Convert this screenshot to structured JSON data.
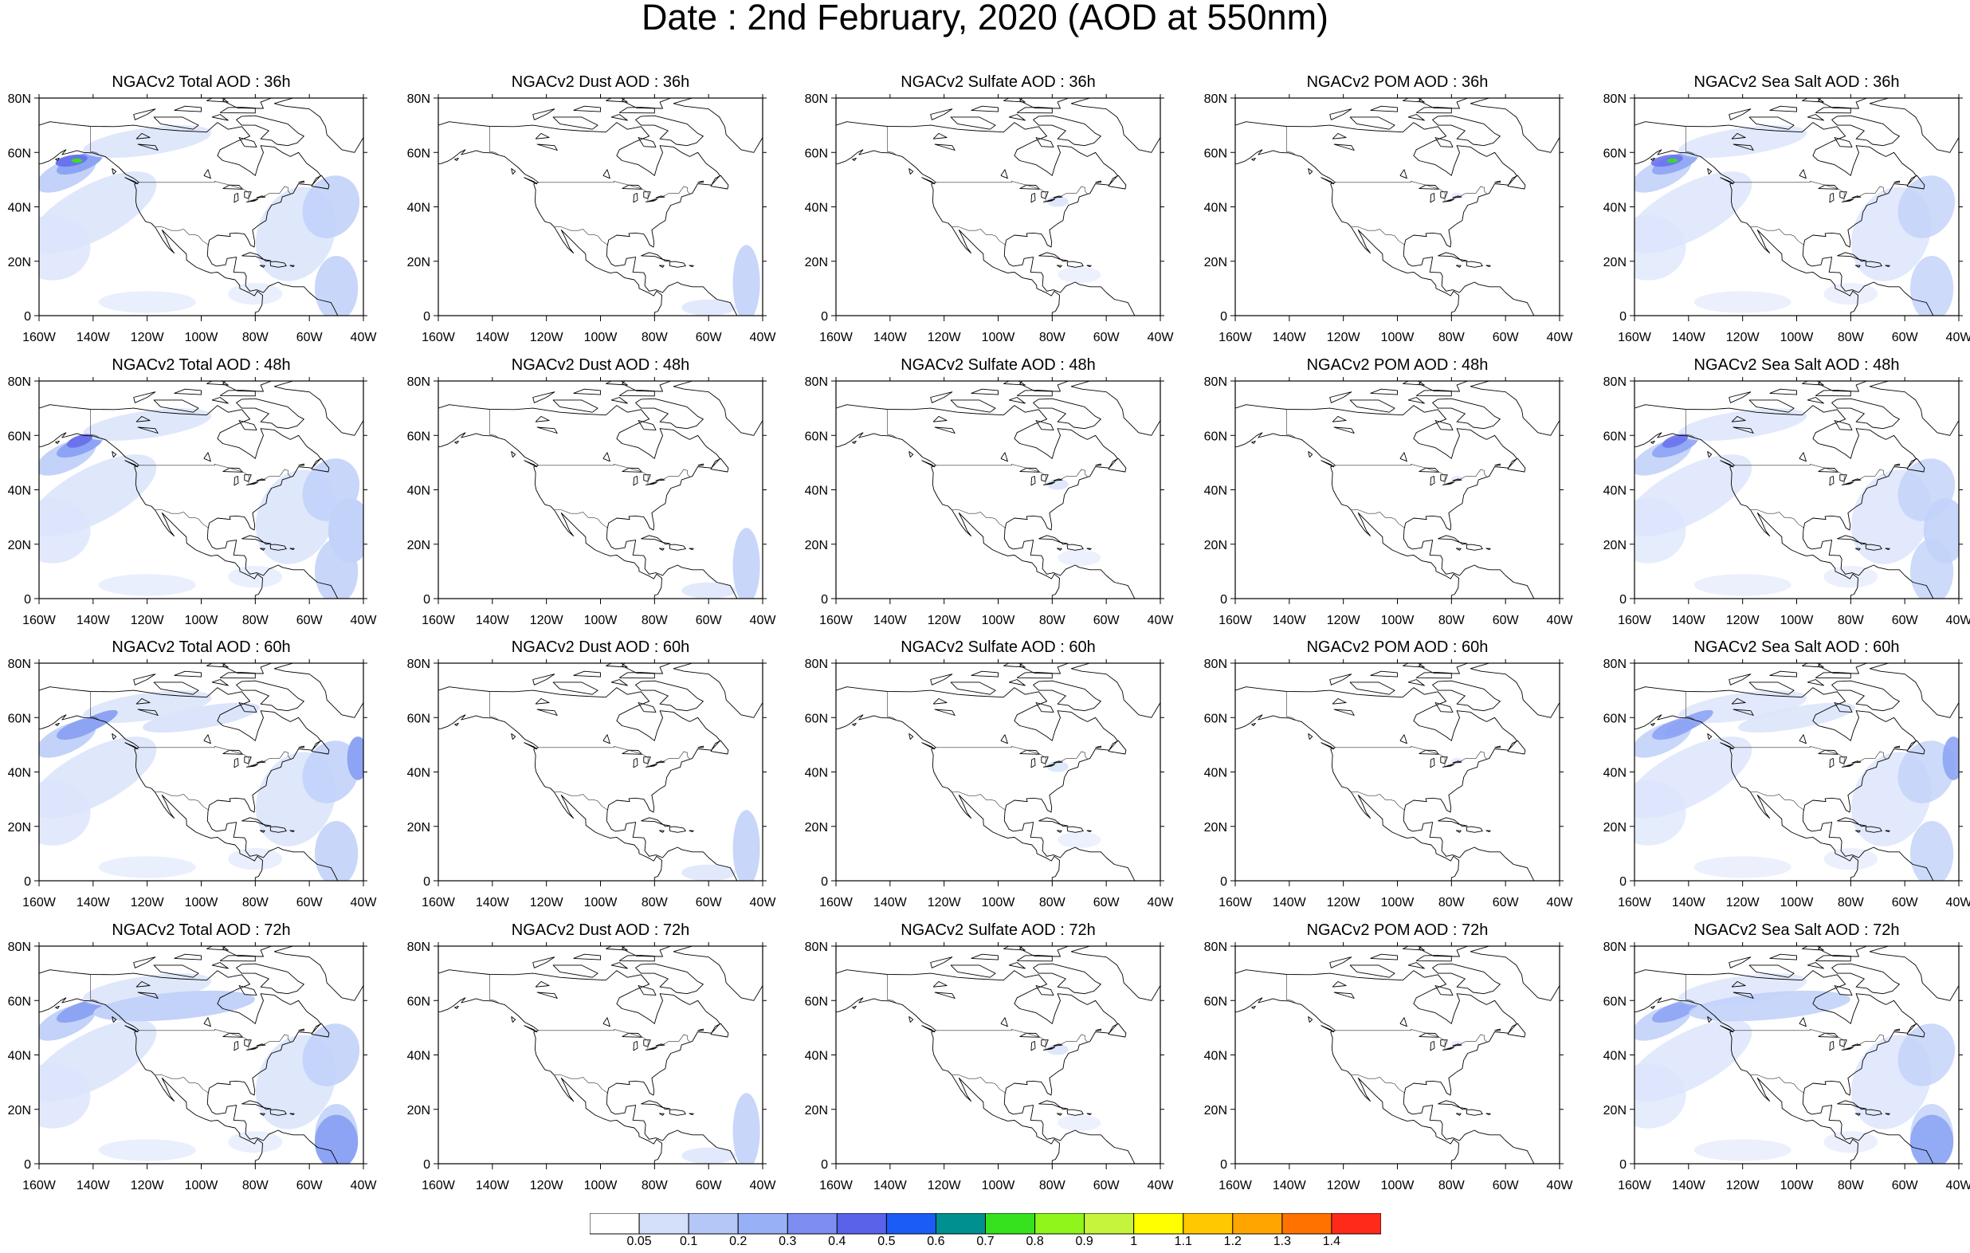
{
  "title": "Date : 2nd February, 2020 (AOD at 550nm)",
  "panel_titles": [
    [
      "NGACv2 Total AOD : 36h",
      "NGACv2 Dust AOD : 36h",
      "NGACv2 Sulfate AOD : 36h",
      "NGACv2 POM AOD : 36h",
      "NGACv2 Sea Salt AOD : 36h"
    ],
    [
      "NGACv2 Total AOD : 48h",
      "NGACv2 Dust AOD : 48h",
      "NGACv2 Sulfate AOD : 48h",
      "NGACv2 POM AOD : 48h",
      "NGACv2 Sea Salt AOD : 48h"
    ],
    [
      "NGACv2 Total AOD : 60h",
      "NGACv2 Dust AOD : 60h",
      "NGACv2 Sulfate AOD : 60h",
      "NGACv2 POM AOD : 60h",
      "NGACv2 Sea Salt AOD : 60h"
    ],
    [
      "NGACv2 Total AOD : 72h",
      "NGACv2 Dust AOD : 72h",
      "NGACv2 Sulfate AOD : 72h",
      "NGACv2 POM AOD : 72h",
      "NGACv2 Sea Salt  AOD : 72h"
    ]
  ],
  "map": {
    "lon_ticks": [
      "160W",
      "140W",
      "120W",
      "100W",
      "80W",
      "60W",
      "40W"
    ],
    "lat_ticks": [
      "0",
      "20N",
      "40N",
      "60N",
      "80N"
    ],
    "lon_range": [
      -160,
      -40
    ],
    "lat_range": [
      0,
      80
    ]
  },
  "colorbar": {
    "labels": [
      "0.05",
      "0.1",
      "0.2",
      "0.3",
      "0.4",
      "0.5",
      "0.6",
      "0.7",
      "0.8",
      "0.9",
      "1",
      "1.1",
      "1.2",
      "1.3",
      "1.4"
    ],
    "colors": [
      "#ffffff",
      "#d4dffa",
      "#b5c7f7",
      "#98b0f5",
      "#7e8df2",
      "#5a62ea",
      "#1a5cf5",
      "#009090",
      "#36e11e",
      "#8ff51a",
      "#c6f43c",
      "#ffff00",
      "#ffc800",
      "#ffa500",
      "#ff7200",
      "#ff2a1a"
    ]
  },
  "legend_colors": {
    "coast": "#000000",
    "very_light_blue": "#dbe4fb",
    "light_blue": "#c2d2f9",
    "mid_blue": "#a7bdf7",
    "blue": "#8da4f4",
    "deep_blue": "#6b73ec",
    "green": "#36e11e"
  }
}
